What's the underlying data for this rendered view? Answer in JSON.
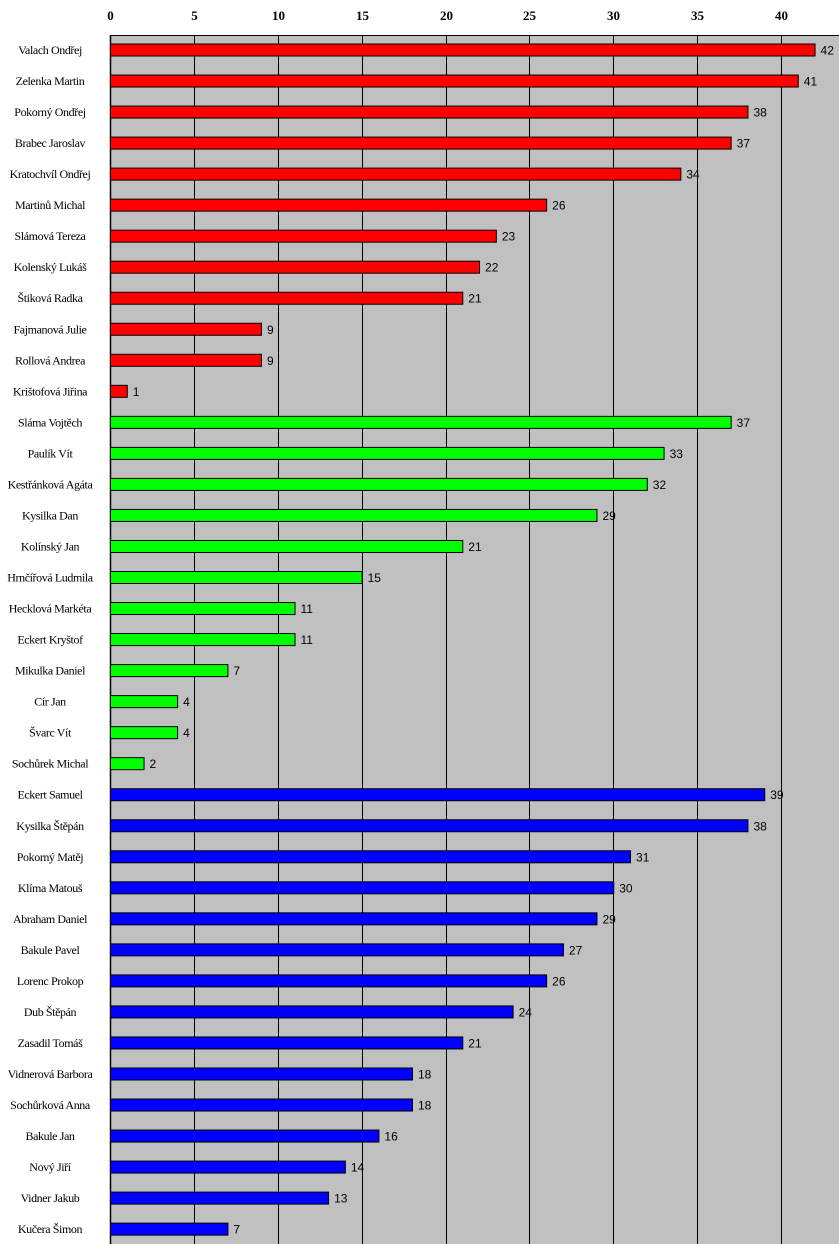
{
  "chart_data": {
    "type": "bar",
    "orientation": "horizontal",
    "title": "",
    "xlabel": "",
    "ylabel": "",
    "xlim": [
      0,
      43.5
    ],
    "xticks": [
      0,
      5,
      10,
      15,
      20,
      25,
      30,
      35,
      40
    ],
    "x_axis_position": "top",
    "grid": true,
    "background": "#c0c0c0",
    "series": [
      {
        "name": "red",
        "color": "#ff0000",
        "categories": [
          "Valach Ondřej",
          "Zelenka Martin",
          "Pokorný Ondřej",
          "Brabec Jaroslav",
          "Kratochvíl Ondřej",
          "Martinů Michal",
          "Slámová Tereza",
          "Kolenský Lukáš",
          "Štiková Radka",
          "Fajmanová Julie",
          "Rollová Andrea",
          "Krištofová Jiřina"
        ],
        "values": [
          42,
          41,
          38,
          37,
          34,
          26,
          23,
          22,
          21,
          9,
          9,
          1
        ]
      },
      {
        "name": "green",
        "color": "#00ff00",
        "categories": [
          "Sláma Vojtěch",
          "Paulík Vít",
          "Kestřánková Agáta",
          "Kysilka Dan",
          "Kolínský Jan",
          "Hrnčířová Ludmila",
          "Hecklová Markéta",
          "Eckert Kryštof",
          "Mikulka Daniel",
          "Cír Jan",
          "Švarc Vít",
          "Sochůrek Michal"
        ],
        "values": [
          37,
          33,
          32,
          29,
          21,
          15,
          11,
          11,
          7,
          4,
          4,
          2
        ]
      },
      {
        "name": "blue",
        "color": "#0000ff",
        "categories": [
          "Eckert Samuel",
          "Kysilka Štěpán",
          "Pokorný Matěj",
          "Klíma Matouš",
          "Abraham Daniel",
          "Bakule Pavel",
          "Lorenc Prokop",
          "Dub Štěpán",
          "Zasadil Tomáš",
          "Vidnerová Barbora",
          "Sochůrková Anna",
          "Bakule Jan",
          "Nový Jiří",
          "Vidner Jakub",
          "Kučera Šimon"
        ],
        "values": [
          39,
          38,
          31,
          30,
          29,
          27,
          26,
          24,
          21,
          18,
          18,
          16,
          14,
          13,
          7
        ]
      }
    ]
  }
}
